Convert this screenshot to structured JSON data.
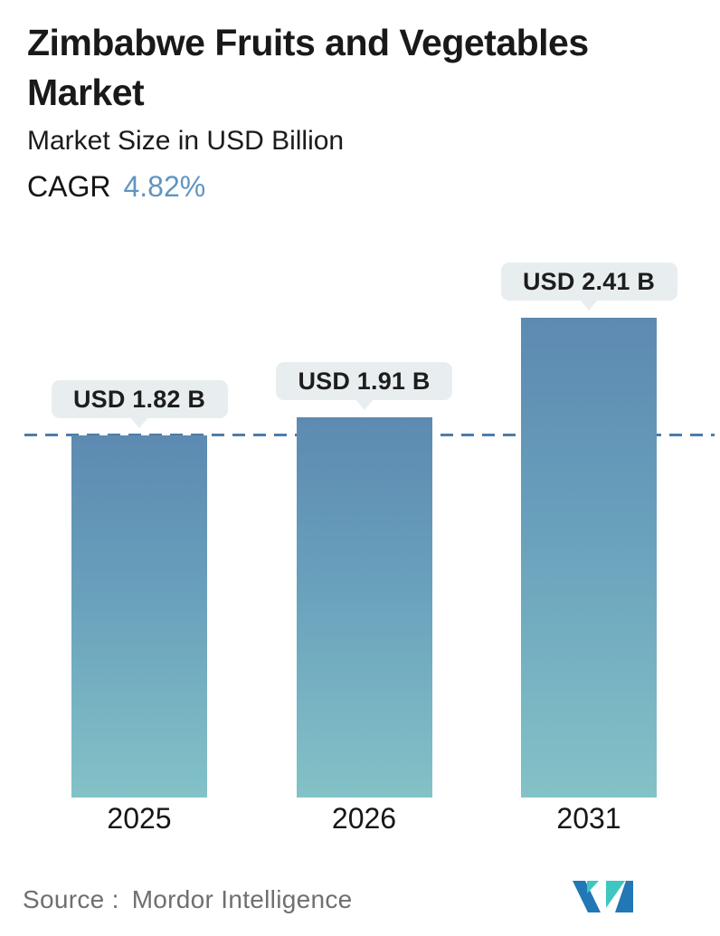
{
  "header": {
    "title": "Zimbabwe Fruits and Vegetables Market",
    "subtitle": "Market Size in USD Billion",
    "cagr_label": "CAGR",
    "cagr_value": "4.82%"
  },
  "chart_data": {
    "type": "bar",
    "title": "Zimbabwe Fruits and Vegetables Market",
    "subtitle": "Market Size in USD Billion",
    "cagr_percent": 4.82,
    "categories": [
      "2025",
      "2026",
      "2031"
    ],
    "values": [
      1.82,
      1.91,
      2.41
    ],
    "value_labels": [
      "USD 1.82 B",
      "USD 1.91 B",
      "USD 2.41 B"
    ],
    "unit": "USD Billion",
    "xlabel": "",
    "ylabel": "",
    "ylim": [
      0,
      2.41
    ],
    "grid": false,
    "legend": false,
    "baseline": {
      "value": 1.82,
      "style": "dashed",
      "note": "horizontal dashed reference line at 2025 level"
    }
  },
  "footer": {
    "source_label": "Source :",
    "source_name": "Mordor Intelligence",
    "logo_name": "mordor-intelligence-logo"
  },
  "colors": {
    "title_text": "#191919",
    "cagr_accent": "#6095c2",
    "bar_gradient_top": "#5d8ab1",
    "bar_gradient_mid": "#69a1bc",
    "bar_gradient_bottom": "#83c2c7",
    "baseline_dash": "#4e7da7",
    "bubble_bg": "#e8eef0",
    "bubble_text": "#1d1d1d",
    "year_text": "#161616",
    "source_text": "#6f6f6f",
    "logo_blue": "#2277b5",
    "logo_teal": "#3ec6c0"
  }
}
